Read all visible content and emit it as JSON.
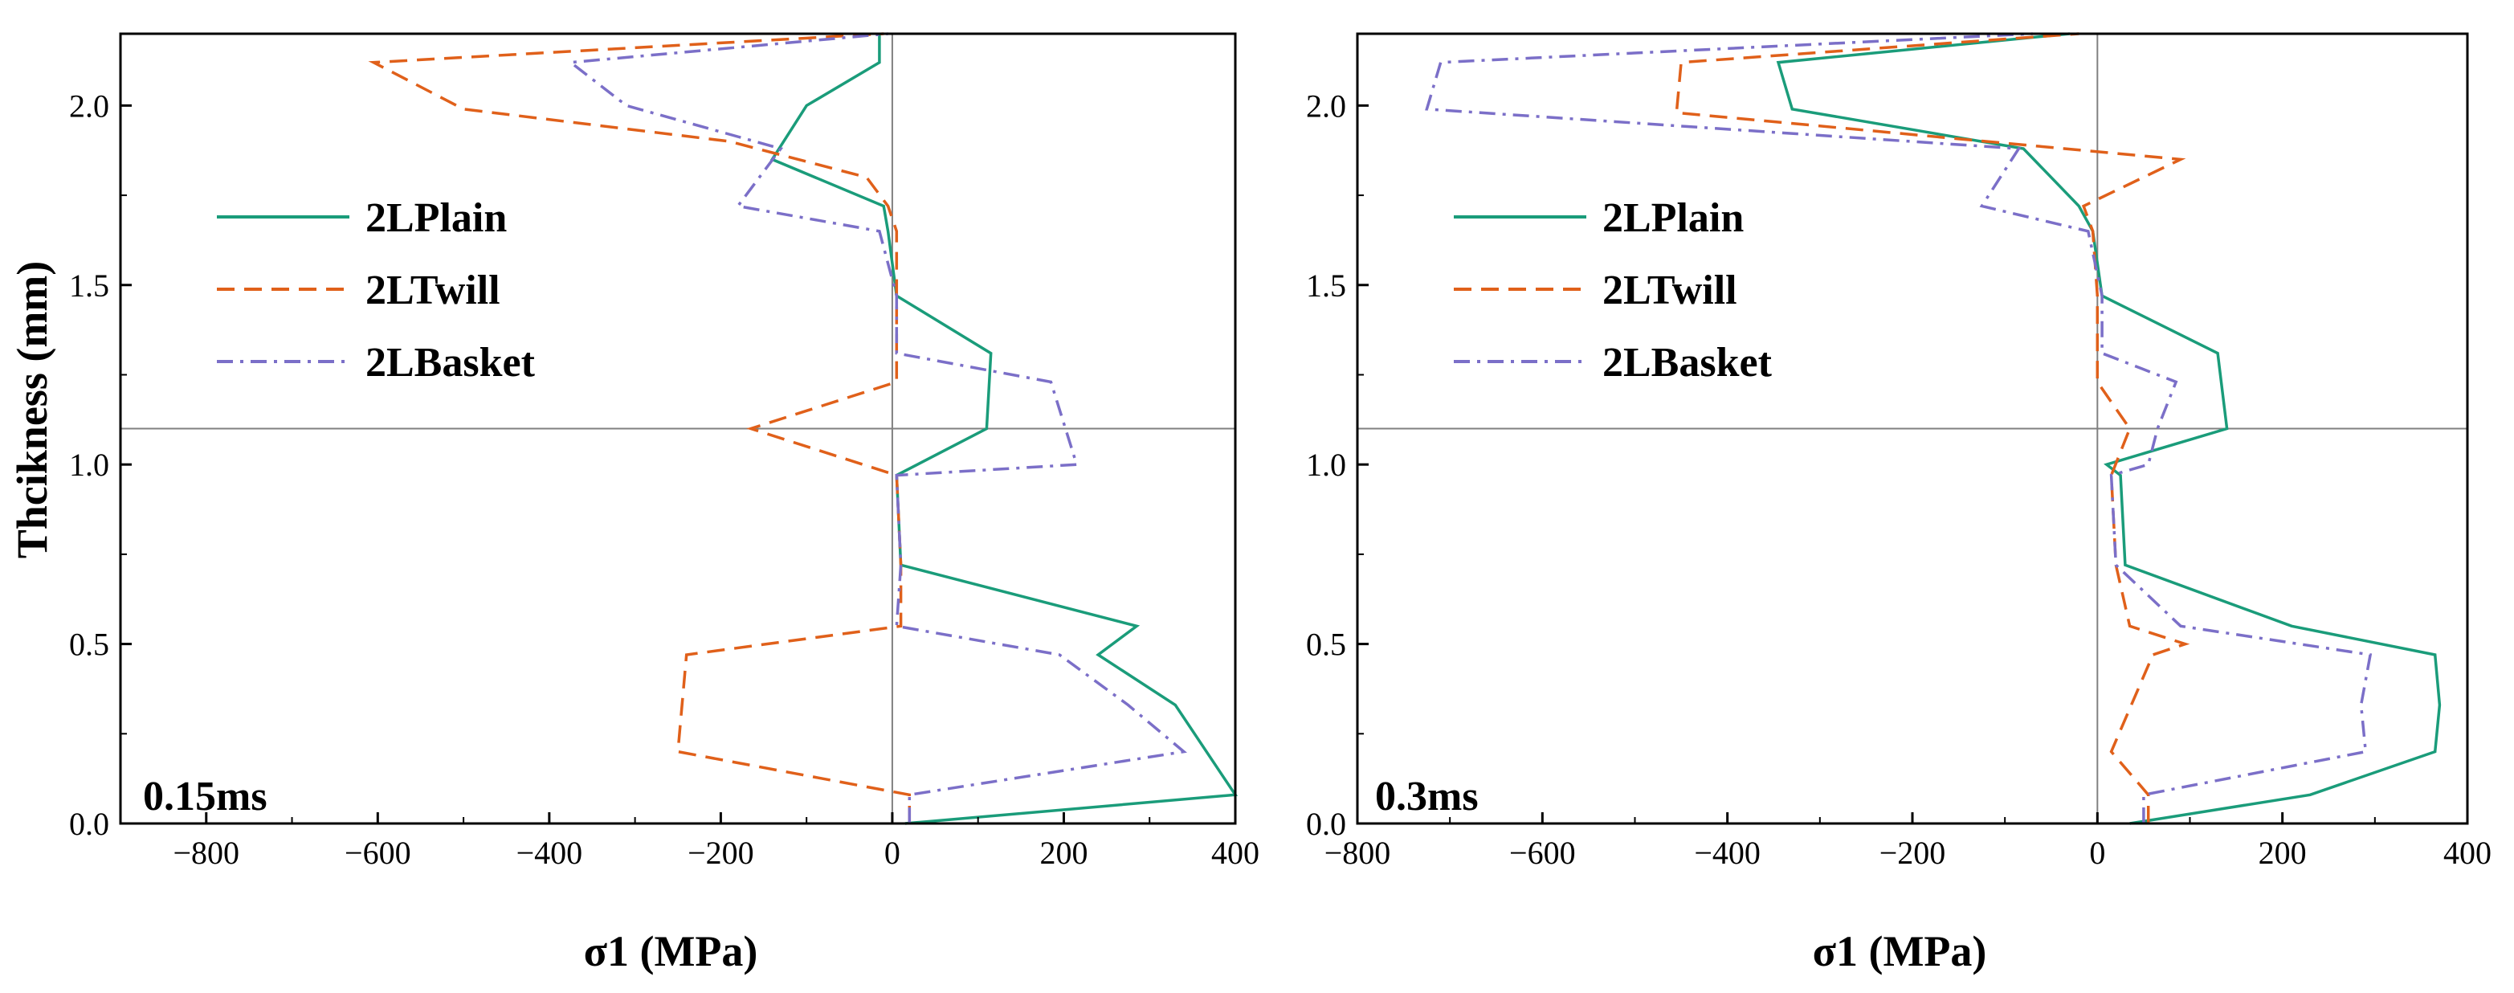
{
  "figure": {
    "ylabel": "Thcikness (mm)",
    "colors": {
      "plain": "#1a9c7a",
      "twill": "#e0601a",
      "basket": "#7b6fc8",
      "ref_line": "#808080",
      "background": "#ffffff"
    }
  },
  "chart_data": [
    {
      "type": "line",
      "panel_label": "0.15ms",
      "xlabel": "σ1 (MPa)",
      "ylabel": "Thcikness (mm)",
      "xlim": [
        -900,
        400
      ],
      "ylim": [
        0,
        2.2
      ],
      "xticks": [
        -800,
        -600,
        -400,
        -200,
        0,
        200,
        400
      ],
      "xtick_labels": [
        "−800",
        "−600",
        "−400",
        "−200",
        "0",
        "200",
        "400"
      ],
      "yticks": [
        0.0,
        0.5,
        1.0,
        1.5,
        2.0
      ],
      "ytick_labels": [
        "0.0",
        "0.5",
        "1.0",
        "1.5",
        "2.0"
      ],
      "ref_lines": {
        "x": 0,
        "y": 1.1
      },
      "legend": {
        "position": "upper-left",
        "entries": [
          "2LPlain",
          "2LTwill",
          "2LBasket"
        ]
      },
      "series": [
        {
          "name": "2LPlain",
          "style": "solid",
          "points": [
            [
              15,
              0.0
            ],
            [
              400,
              0.08
            ],
            [
              330,
              0.33
            ],
            [
              240,
              0.47
            ],
            [
              285,
              0.55
            ],
            [
              10,
              0.72
            ],
            [
              5,
              0.97
            ],
            [
              110,
              1.1
            ],
            [
              115,
              1.31
            ],
            [
              5,
              1.47
            ],
            [
              -5,
              1.65
            ],
            [
              -10,
              1.72
            ],
            [
              -140,
              1.85
            ],
            [
              -100,
              2.0
            ],
            [
              -15,
              2.12
            ],
            [
              -15,
              2.2
            ]
          ]
        },
        {
          "name": "2LTwill",
          "style": "dashed",
          "points": [
            [
              20,
              0.0
            ],
            [
              20,
              0.08
            ],
            [
              -250,
              0.2
            ],
            [
              -240,
              0.47
            ],
            [
              10,
              0.55
            ],
            [
              10,
              0.72
            ],
            [
              5,
              0.97
            ],
            [
              -165,
              1.1
            ],
            [
              5,
              1.23
            ],
            [
              5,
              1.47
            ],
            [
              5,
              1.65
            ],
            [
              -5,
              1.72
            ],
            [
              -30,
              1.8
            ],
            [
              -190,
              1.9
            ],
            [
              -500,
              1.99
            ],
            [
              -605,
              2.12
            ],
            [
              -10,
              2.2
            ]
          ]
        },
        {
          "name": "2LBasket",
          "style": "dashdot",
          "points": [
            [
              20,
              0.0
            ],
            [
              20,
              0.08
            ],
            [
              340,
              0.2
            ],
            [
              275,
              0.33
            ],
            [
              195,
              0.47
            ],
            [
              5,
              0.55
            ],
            [
              10,
              0.72
            ],
            [
              5,
              0.97
            ],
            [
              215,
              1.0
            ],
            [
              185,
              1.23
            ],
            [
              5,
              1.31
            ],
            [
              5,
              1.47
            ],
            [
              -15,
              1.65
            ],
            [
              -180,
              1.72
            ],
            [
              -130,
              1.88
            ],
            [
              -310,
              2.0
            ],
            [
              -375,
              2.12
            ],
            [
              -5,
              2.2
            ]
          ]
        }
      ]
    },
    {
      "type": "line",
      "panel_label": "0.3ms",
      "xlabel": "σ1 (MPa)",
      "ylabel": "",
      "xlim": [
        -800,
        400
      ],
      "ylim": [
        0,
        2.2
      ],
      "xticks": [
        -800,
        -600,
        -400,
        -200,
        0,
        200,
        400
      ],
      "xtick_labels": [
        "−800",
        "−600",
        "−400",
        "−200",
        "0",
        "200",
        "400"
      ],
      "yticks": [
        0.0,
        0.5,
        1.0,
        1.5,
        2.0
      ],
      "ytick_labels": [
        "0.0",
        "0.5",
        "1.0",
        "1.5",
        "2.0"
      ],
      "ref_lines": {
        "x": 0,
        "y": 1.1
      },
      "legend": {
        "position": "upper-left",
        "entries": [
          "2LPlain",
          "2LTwill",
          "2LBasket"
        ]
      },
      "series": [
        {
          "name": "2LPlain",
          "style": "solid",
          "points": [
            [
              35,
              0.0
            ],
            [
              230,
              0.08
            ],
            [
              365,
              0.2
            ],
            [
              370,
              0.33
            ],
            [
              365,
              0.47
            ],
            [
              210,
              0.55
            ],
            [
              30,
              0.72
            ],
            [
              25,
              0.97
            ],
            [
              10,
              1.0
            ],
            [
              140,
              1.1
            ],
            [
              130,
              1.31
            ],
            [
              5,
              1.47
            ],
            [
              -5,
              1.65
            ],
            [
              -20,
              1.72
            ],
            [
              -80,
              1.88
            ],
            [
              -330,
              1.99
            ],
            [
              -345,
              2.12
            ],
            [
              -30,
              2.2
            ]
          ]
        },
        {
          "name": "2LTwill",
          "style": "dashed",
          "points": [
            [
              55,
              0.0
            ],
            [
              55,
              0.08
            ],
            [
              15,
              0.2
            ],
            [
              60,
              0.47
            ],
            [
              95,
              0.5
            ],
            [
              35,
              0.55
            ],
            [
              20,
              0.72
            ],
            [
              15,
              0.97
            ],
            [
              35,
              1.1
            ],
            [
              0,
              1.23
            ],
            [
              0,
              1.47
            ],
            [
              -5,
              1.65
            ],
            [
              -15,
              1.72
            ],
            [
              90,
              1.85
            ],
            [
              -455,
              1.98
            ],
            [
              -450,
              2.12
            ],
            [
              -20,
              2.2
            ]
          ]
        },
        {
          "name": "2LBasket",
          "style": "dashdot",
          "points": [
            [
              50,
              0.0
            ],
            [
              50,
              0.08
            ],
            [
              290,
              0.2
            ],
            [
              285,
              0.33
            ],
            [
              295,
              0.47
            ],
            [
              90,
              0.55
            ],
            [
              20,
              0.72
            ],
            [
              15,
              0.97
            ],
            [
              55,
              1.0
            ],
            [
              65,
              1.1
            ],
            [
              85,
              1.23
            ],
            [
              5,
              1.31
            ],
            [
              5,
              1.47
            ],
            [
              -10,
              1.65
            ],
            [
              -125,
              1.72
            ],
            [
              -85,
              1.88
            ],
            [
              -725,
              1.99
            ],
            [
              -710,
              2.12
            ],
            [
              -70,
              2.2
            ]
          ]
        }
      ]
    }
  ]
}
